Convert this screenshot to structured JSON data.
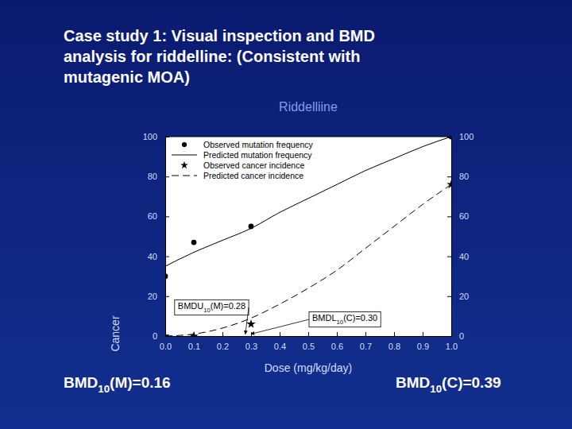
{
  "slide_title_lines": [
    "Case study 1: Visual inspection and BMD",
    "analysis for riddelline:  (Consistent with",
    "mutagenic MOA)"
  ],
  "footer_left": "BMD10(M)=0.16",
  "footer_right": "BMD10(C)=0.39",
  "chart_data": {
    "type": "scatter",
    "title": "Riddelliine",
    "x_label": "Dose (mg/kg/day)",
    "y_label": "Cancer",
    "xlim": [
      0,
      1
    ],
    "xticks": [
      {
        "value": 0,
        "label": "0.0"
      },
      0.1,
      0.2,
      0.3,
      0.4,
      0.5,
      0.6,
      0.7,
      0.8,
      0.9,
      {
        "value": 1,
        "label": "1.0"
      }
    ],
    "ylim": [
      0,
      100
    ],
    "yticks": [
      0,
      20,
      40,
      60,
      80,
      100
    ],
    "y2lim": [
      0,
      100
    ],
    "y2ticks": [
      0,
      20,
      40,
      60,
      80,
      100
    ],
    "legend": "upper left",
    "series": [
      {
        "name": "Observed mutation frequency",
        "type": "scatter",
        "marker": "circle",
        "color": "#000000",
        "x": [
          0,
          0.1,
          0.3,
          1
        ],
        "values": [
          30,
          47,
          55,
          100
        ]
      },
      {
        "name": "Predicted mutation frequency",
        "type": "line",
        "line_style": "solid",
        "color": "#000000",
        "x": [
          0,
          0.1,
          0.2,
          0.3,
          0.4,
          0.5,
          0.6,
          0.7,
          0.8,
          0.9,
          1
        ],
        "values": [
          35,
          42,
          48,
          54,
          62,
          69,
          76,
          83,
          89,
          95,
          100
        ]
      },
      {
        "name": "Observed cancer incidence",
        "type": "scatter",
        "marker": "star",
        "color": "#000000",
        "axis": "y2",
        "x": [
          0,
          0.1,
          0.3,
          1
        ],
        "values": [
          0,
          0,
          6,
          76
        ]
      },
      {
        "name": "Predicted cancer incidence",
        "type": "line",
        "line_style": "dashed",
        "color": "#000000",
        "axis": "y2",
        "x": [
          0,
          0.1,
          0.2,
          0.3,
          0.4,
          0.5,
          0.6,
          0.7,
          0.8,
          0.9,
          1
        ],
        "values": [
          0,
          1,
          4,
          9,
          16,
          24,
          33,
          44,
          55,
          66,
          76
        ]
      }
    ],
    "annotations": [
      {
        "text": "BMDU10(M)=0.28",
        "x": 0.28
      },
      {
        "text": "BMDL10(C)=0.30",
        "x": 0.3
      }
    ]
  }
}
